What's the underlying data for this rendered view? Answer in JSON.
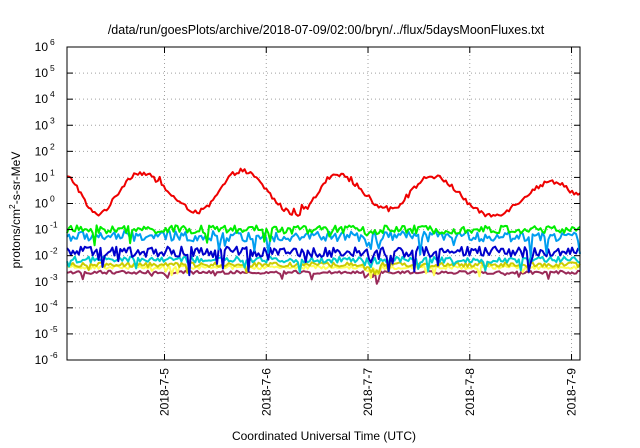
{
  "chart_data": {
    "type": "line",
    "title": "/data/run/goesPlots/archive/2018-07-09/02:00/bryn/../flux/5daysMoonFluxes.txt",
    "xlabel": "Coordinated Universal Time (UTC)",
    "ylabel_parts": [
      "protons/cm",
      "2",
      "-s-sr-MeV"
    ],
    "yscale": "log",
    "ylim": [
      1e-06,
      1000000.0
    ],
    "y_ticks": [
      {
        "base": "10",
        "exp": "-6",
        "value": 1e-06
      },
      {
        "base": "10",
        "exp": "-5",
        "value": 1e-05
      },
      {
        "base": "10",
        "exp": "-4",
        "value": 0.0001
      },
      {
        "base": "10",
        "exp": "-3",
        "value": 0.001
      },
      {
        "base": "10",
        "exp": "-2",
        "value": 0.01
      },
      {
        "base": "10",
        "exp": "-1",
        "value": 0.1
      },
      {
        "base": "10",
        "exp": "0",
        "value": 1
      },
      {
        "base": "10",
        "exp": "1",
        "value": 10
      },
      {
        "base": "10",
        "exp": "2",
        "value": 100
      },
      {
        "base": "10",
        "exp": "3",
        "value": 1000
      },
      {
        "base": "10",
        "exp": "4",
        "value": 10000
      },
      {
        "base": "10",
        "exp": "5",
        "value": 100000
      },
      {
        "base": "10",
        "exp": "6",
        "value": 1000000
      }
    ],
    "xlim": [
      "2018-07-04 01:00",
      "2018-07-09 02:00"
    ],
    "x_ticks": [
      {
        "label": "2018-7-5",
        "time": "2018-07-05 00:00"
      },
      {
        "label": "2018-7-6",
        "time": "2018-07-06 00:00"
      },
      {
        "label": "2018-7-7",
        "time": "2018-07-07 00:00"
      },
      {
        "label": "2018-7-8",
        "time": "2018-07-08 00:00"
      },
      {
        "label": "2018-7-9",
        "time": "2018-07-09 00:00"
      }
    ],
    "grid": true,
    "legend": "none",
    "series": [
      {
        "color": "#ee0000",
        "kind": "orbit",
        "base": 1.2,
        "amp": 1.05,
        "noise": 0.09,
        "period_days": 1.0,
        "phase_days": 0.33,
        "points": [
          {
            "x": "2018-07-04 01:00",
            "y": 10
          },
          {
            "x": "2018-07-04 08:00",
            "y": 0.4
          },
          {
            "x": "2018-07-04 18:00",
            "y": 15
          },
          {
            "x": "2018-07-05 08:00",
            "y": 0.5
          },
          {
            "x": "2018-07-05 18:00",
            "y": 18
          },
          {
            "x": "2018-07-06 07:00",
            "y": 0.4
          },
          {
            "x": "2018-07-06 17:00",
            "y": 12
          },
          {
            "x": "2018-07-07 05:00",
            "y": 0.6
          },
          {
            "x": "2018-07-07 15:00",
            "y": 11
          },
          {
            "x": "2018-07-08 05:00",
            "y": 0.35
          },
          {
            "x": "2018-07-08 20:00",
            "y": 7
          },
          {
            "x": "2018-07-09 02:00",
            "y": 2.2
          }
        ]
      },
      {
        "color": "#00ee00",
        "kind": "noisy",
        "level": 0.1,
        "noise": 0.16
      },
      {
        "color": "#009ef0",
        "kind": "noisy",
        "level": 0.055,
        "noise": 0.2
      },
      {
        "color": "#0000cc",
        "kind": "noisy",
        "level": 0.014,
        "noise": 0.2
      },
      {
        "color": "#00cccc",
        "kind": "noisy",
        "level": 0.007,
        "noise": 0.12
      },
      {
        "color": "#cccc00",
        "kind": "noisy",
        "level": 0.0045,
        "noise": 0.09
      },
      {
        "color": "#ffff55",
        "kind": "noisy",
        "level": 0.0036,
        "noise": 0.07
      },
      {
        "color": "#9a2a58",
        "kind": "noisy",
        "level": 0.0023,
        "noise": 0.06
      }
    ]
  }
}
